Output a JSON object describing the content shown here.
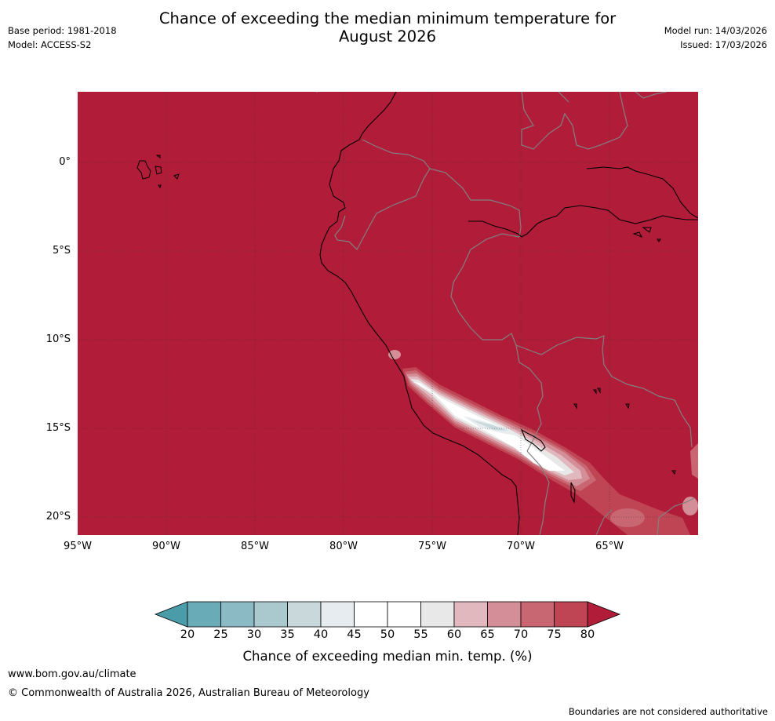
{
  "header": {
    "title_line1": "Chance of exceeding the median minimum temperature for",
    "title_line2": "August 2026",
    "base_period": "Base period: 1981-2018",
    "model": "Model: ACCESS-S2",
    "model_run": "Model run: 14/03/2026",
    "issued": "Issued: 17/03/2026"
  },
  "map": {
    "lat_labels": [
      "0°",
      "5°S",
      "10°S",
      "15°S",
      "20°S"
    ],
    "lon_labels": [
      "95°W",
      "90°W",
      "85°W",
      "80°W",
      "75°W",
      "70°W",
      "65°W"
    ],
    "colors": {
      "dominant_fill": "#b11d39",
      "coastline": "#000000",
      "borders": "#808080",
      "gridlines": "#333333"
    }
  },
  "colorbar": {
    "labels": [
      "20",
      "25",
      "30",
      "35",
      "40",
      "45",
      "50",
      "55",
      "60",
      "65",
      "70",
      "75",
      "80"
    ],
    "colors": [
      "#4a9ca9",
      "#6aabb8",
      "#8bbac5",
      "#a9c9cf",
      "#c9d9db",
      "#e6ecef",
      "#ffffff",
      "#ffffff",
      "#e8e8e8",
      "#e0b8bd",
      "#d48e97",
      "#c86672",
      "#bf4554",
      "#b11d39"
    ],
    "label": "Chance of exceeding median min. temp. (%)"
  },
  "footer": {
    "website": "www.bom.gov.au/climate",
    "copyright": "© Commonwealth of Australia 2026, Australian Bureau of Meteorology",
    "disclaimer": "Boundaries are not considered authoritative"
  }
}
